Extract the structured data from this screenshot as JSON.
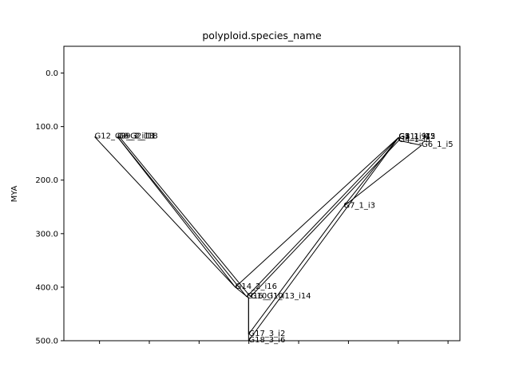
{
  "chart_data": {
    "type": "line",
    "title": "polyploid.species_name",
    "xlabel": "",
    "ylabel": "MYA",
    "ylim": [
      500,
      -50
    ],
    "y_inverted": true,
    "grid": false,
    "y_ticks": [
      0,
      100,
      200,
      300,
      400,
      500
    ],
    "y_tick_labels": [
      "0.0",
      "100.0",
      "200.0",
      "300.0",
      "400.0",
      "500.0"
    ],
    "x_tick_count": 8,
    "x_tick_labels_shown": false,
    "nodes": [
      {
        "id": "G12_G9_G2_i18",
        "label": "G12_G9_G2_i18",
        "x": 0.06,
        "y": 119,
        "show_label": true
      },
      {
        "id": "G9_3_i13",
        "label": "G9_3_i13",
        "x": 0.12,
        "y": 119,
        "show_label": true
      },
      {
        "id": "G9_2_i11",
        "label": "G9_2_i11",
        "x": 0.125,
        "y": 119,
        "show_label": true
      },
      {
        "id": "G14_2_i16",
        "label": "G14_2_i16",
        "x": 0.43,
        "y": 400,
        "show_label": true
      },
      {
        "id": "G16_G1_i13_i14",
        "label": "G16_G1_i13_i14",
        "x": 0.46,
        "y": 418,
        "show_label": true
      },
      {
        "id": "G10_i10",
        "label": "G10_i10",
        "x": 0.47,
        "y": 418,
        "show_label": true
      },
      {
        "id": "G17_3_i2",
        "label": "G17_3_i2",
        "x": 0.465,
        "y": 488,
        "show_label": true
      },
      {
        "id": "G18_3_i6",
        "label": "G18_3_i6",
        "x": 0.465,
        "y": 500,
        "show_label": true
      },
      {
        "id": "G7_1_i3",
        "label": "G7_1_i3",
        "x": 0.715,
        "y": 249,
        "show_label": true
      },
      {
        "id": "G4_1_i8",
        "label": "G4_1_i8",
        "x": 0.86,
        "y": 126,
        "show_label": true
      },
      {
        "id": "G6_1_i5",
        "label": "G6_1_i5",
        "x": 0.92,
        "y": 135,
        "show_label": true
      },
      {
        "id": "G8_1_i15",
        "label": "G8_1_i15",
        "x": 0.86,
        "y": 120,
        "show_label": true
      },
      {
        "id": "G11_i9",
        "label": "G11_i9",
        "x": 0.86,
        "y": 120,
        "show_label": true
      },
      {
        "id": "G3_1_i4",
        "label": "G3_1_i4",
        "x": 0.86,
        "y": 120,
        "show_label": true
      },
      {
        "id": "G1_1_i1",
        "label": "G1_1_i1",
        "x": 0.86,
        "y": 120,
        "show_label": true
      },
      {
        "id": "G5_1_i7",
        "label": "G5_1_i7",
        "x": 0.86,
        "y": 120,
        "show_label": true
      },
      {
        "id": "G2_1_i12",
        "label": "G2_1_i12",
        "x": 0.86,
        "y": 120,
        "show_label": true
      },
      {
        "id": "root_a",
        "label": "",
        "x": 0.43,
        "y": 402,
        "show_label": false
      },
      {
        "id": "root_b",
        "label": "",
        "x": 0.465,
        "y": 420,
        "show_label": false
      }
    ],
    "edges": [
      [
        "G12_G9_G2_i18",
        "G14_2_i16"
      ],
      [
        "G9_3_i13",
        "G14_2_i16"
      ],
      [
        "G9_2_i11",
        "G10_i10"
      ],
      [
        "G9_3_i13",
        "G16_G1_i13_i14"
      ],
      [
        "G14_2_i16",
        "root_b"
      ],
      [
        "root_b",
        "G17_3_i2"
      ],
      [
        "root_b",
        "G18_3_i6"
      ],
      [
        "G16_G1_i13_i14",
        "G8_1_i15"
      ],
      [
        "G10_i10",
        "G4_1_i8"
      ],
      [
        "G14_2_i16",
        "G3_1_i4"
      ],
      [
        "G17_3_i2",
        "G7_1_i3"
      ],
      [
        "G7_1_i3",
        "G6_1_i5"
      ],
      [
        "G7_1_i3",
        "G5_1_i7"
      ],
      [
        "G18_3_i6",
        "G2_1_i12"
      ],
      [
        "G4_1_i8",
        "G6_1_i5"
      ],
      [
        "G8_1_i15",
        "G11_i9"
      ],
      [
        "G1_1_i1",
        "G4_1_i8"
      ]
    ]
  }
}
